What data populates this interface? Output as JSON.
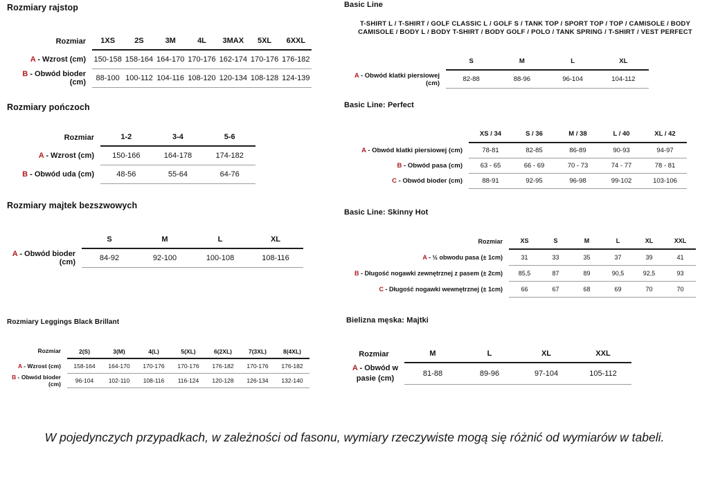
{
  "colors": {
    "accent_red": "#b01b20",
    "text": "#111111",
    "rule_thin": "#9c9c9c",
    "rule_thick": "#1c1c1c"
  },
  "note": "W pojedynczych przypadkach, w zależności od fasonu, wymiary rzeczywiste mogą się różnić od wymiarów w tabeli.",
  "sections": {
    "rajstop": {
      "title": "Rozmiary rajstop",
      "table": {
        "corner_label": "Rozmiar",
        "columns": [
          "1XS",
          "2S",
          "3M",
          "4L",
          "3MAX",
          "5XL",
          "6XXL"
        ],
        "rows": [
          {
            "letter": "A",
            "label": " - Wzrost (cm)",
            "values": [
              "150-158",
              "158-164",
              "164-170",
              "170-176",
              "162-174",
              "170-176",
              "176-182"
            ]
          },
          {
            "letter": "B",
            "label": " - Obwód bioder (cm)",
            "values": [
              "88-100",
              "100-112",
              "104-116",
              "108-120",
              "120-134",
              "108-128",
              "124-139"
            ]
          }
        ]
      }
    },
    "ponczochy": {
      "title": "Rozmiary pończoch",
      "table": {
        "corner_label": "Rozmiar",
        "columns": [
          "1-2",
          "3-4",
          "5-6"
        ],
        "rows": [
          {
            "letter": "A",
            "label": " - Wzrost (cm)",
            "values": [
              "150-166",
              "164-178",
              "174-182"
            ]
          },
          {
            "letter": "B",
            "label": " - Obwód uda (cm)",
            "values": [
              "48-56",
              "55-64",
              "64-76"
            ]
          }
        ]
      }
    },
    "majtek": {
      "title": "Rozmiary majtek bezszwowych",
      "table": {
        "corner_label": "",
        "columns": [
          "S",
          "M",
          "L",
          "XL"
        ],
        "rows": [
          {
            "letter": "A",
            "label": " - Obwód bioder (cm)",
            "values": [
              "84-92",
              "92-100",
              "100-108",
              "108-116"
            ]
          }
        ]
      }
    },
    "leggings": {
      "title": "Rozmiary Leggings Black Brillant",
      "table": {
        "corner_label": "Rozmiar",
        "columns": [
          "2(S)",
          "3(M)",
          "4(L)",
          "5(XL)",
          "6(2XL)",
          "7(3XL)",
          "8(4XL)"
        ],
        "rows": [
          {
            "letter": "A",
            "label": " - Wzrost (cm)",
            "values": [
              "158-164",
              "164-170",
              "170-176",
              "170-176",
              "176-182",
              "170-176",
              "176-182"
            ]
          },
          {
            "letter": "B",
            "label": " - Obwód bioder (cm)",
            "values": [
              "96-104",
              "102-110",
              "108-116",
              "116-124",
              "120-128",
              "126-134",
              "132-140"
            ]
          }
        ]
      }
    },
    "basic": {
      "title": "Basic Line",
      "subtitle": "T-SHIRT L / T-SHIRT / GOLF CLASSIC L / GOLF S / TANK TOP / SPORT TOP / TOP / CAMISOLE / BODY CAMISOLE / BODY L / BODY T-SHIRT / BODY GOLF / POLO / TANK SPRING / T-SHIRT / VEST PERFECT",
      "table": {
        "corner_label": "",
        "columns": [
          "S",
          "M",
          "L",
          "XL"
        ],
        "rows": [
          {
            "letter": "A",
            "label": " - Obwód klatki piersiowej (cm)",
            "values": [
              "82-88",
              "88-96",
              "96-104",
              "104-112"
            ]
          }
        ]
      }
    },
    "perfect": {
      "title": "Basic Line: Perfect",
      "table": {
        "corner_label": "",
        "columns": [
          "XS / 34",
          "S / 36",
          "M / 38",
          "L / 40",
          "XL / 42"
        ],
        "rows": [
          {
            "letter": "A",
            "label": " - Obwód klatki piersiowej (cm)",
            "values": [
              "78-81",
              "82-85",
              "86-89",
              "90-93",
              "94-97"
            ]
          },
          {
            "letter": "B",
            "label": " - Obwód pasa (cm)",
            "values": [
              "63 - 65",
              "66 - 69",
              "70 - 73",
              "74 - 77",
              "78 - 81"
            ]
          },
          {
            "letter": "C",
            "label": " - Obwód bioder (cm)",
            "values": [
              "88-91",
              "92-95",
              "96-98",
              "99-102",
              "103-106"
            ]
          }
        ]
      }
    },
    "skinny": {
      "title": "Basic Line: Skinny Hot",
      "table": {
        "corner_label": "Rozmiar",
        "columns": [
          "XS",
          "S",
          "M",
          "L",
          "XL",
          "XXL"
        ],
        "rows": [
          {
            "letter": "A",
            "label": " - ½ obwodu pasa (± 1cm)",
            "values": [
              "31",
              "33",
              "35",
              "37",
              "39",
              "41"
            ]
          },
          {
            "letter": "B",
            "label": " - Długość nogawki zewnętrznej z pasem (± 2cm)",
            "values": [
              "85,5",
              "87",
              "89",
              "90,5",
              "92,5",
              "93"
            ]
          },
          {
            "letter": "C",
            "label": " - Długość nogawki wewnętrznej (± 1cm)",
            "values": [
              "66",
              "67",
              "68",
              "69",
              "70",
              "70"
            ]
          }
        ]
      }
    },
    "majtki": {
      "title": "Bielizna męska: Majtki",
      "table": {
        "corner_label": "Rozmiar",
        "columns": [
          "M",
          "L",
          "XL",
          "XXL"
        ],
        "rows": [
          {
            "letter": "A",
            "label": " - Obwód w pasie (cm)",
            "values": [
              "81-88",
              "89-96",
              "97-104",
              "105-112"
            ]
          }
        ]
      }
    }
  }
}
